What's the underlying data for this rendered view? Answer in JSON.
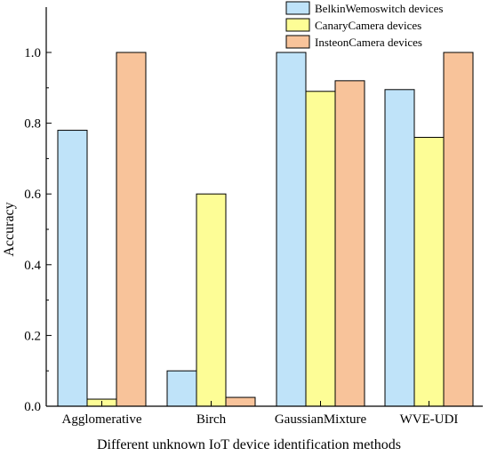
{
  "chart_data": {
    "type": "bar",
    "title": "",
    "xlabel": "Different unknown IoT device identification methods",
    "ylabel": "Accuracy",
    "ylim": [
      0,
      1.0
    ],
    "yticks": [
      "0.0",
      "0.2",
      "0.4",
      "0.6",
      "0.8",
      "1.0"
    ],
    "categories": [
      "Agglomerative",
      "Birch",
      "GaussianMixture",
      "WVE-UDI"
    ],
    "series": [
      {
        "name": "BelkinWemoswitch devices",
        "color": "#bfe3f9",
        "values": [
          0.78,
          0.1,
          1.0,
          0.895
        ]
      },
      {
        "name": "CanaryCamera devices",
        "color": "#fdfd96",
        "values": [
          0.02,
          0.6,
          0.89,
          0.76
        ]
      },
      {
        "name": "InsteonCamera devices",
        "color": "#f8c39a",
        "values": [
          1.0,
          0.025,
          0.92,
          1.0
        ]
      }
    ],
    "grid": false,
    "legend_position": "top-right"
  }
}
